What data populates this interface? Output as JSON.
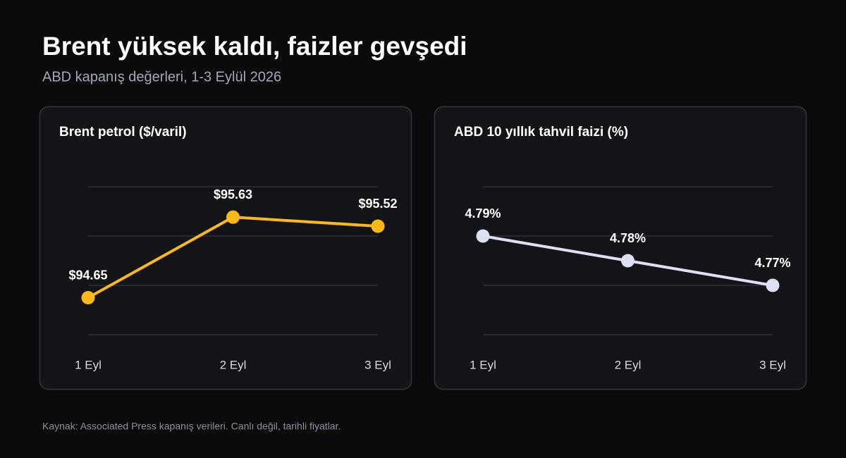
{
  "title": "Brent yüksek kaldı, faizler gevşedi",
  "subtitle": "ABD kapanış değerleri, 1-3 Eylül 2026",
  "footer": "Kaynak: Associated Press kapanış verileri. Canlı değil, tarihli fiyatlar.",
  "chart_data": [
    {
      "type": "line",
      "title": "Brent petrol ($/varil)",
      "categories": [
        "1 Eyl",
        "2 Eyl",
        "3 Eyl"
      ],
      "values": [
        94.65,
        95.63,
        95.52
      ],
      "value_labels": [
        "$94.65",
        "$95.63",
        "$95.52"
      ],
      "color": "#fbb816",
      "ylim": [
        94.2,
        96.0
      ],
      "yticks": [
        94.2,
        94.8,
        95.4,
        96.0
      ],
      "grid": true
    },
    {
      "type": "line",
      "title": "ABD 10 yıllık tahvil faizi (%)",
      "categories": [
        "1 Eyl",
        "2 Eyl",
        "3 Eyl"
      ],
      "values": [
        4.79,
        4.78,
        4.77
      ],
      "value_labels": [
        "4.79%",
        "4.78%",
        "4.77%"
      ],
      "color": "#dde0f2",
      "ylim": [
        4.75,
        4.81
      ],
      "yticks": [
        4.75,
        4.77,
        4.79,
        4.81
      ],
      "grid": true
    }
  ]
}
